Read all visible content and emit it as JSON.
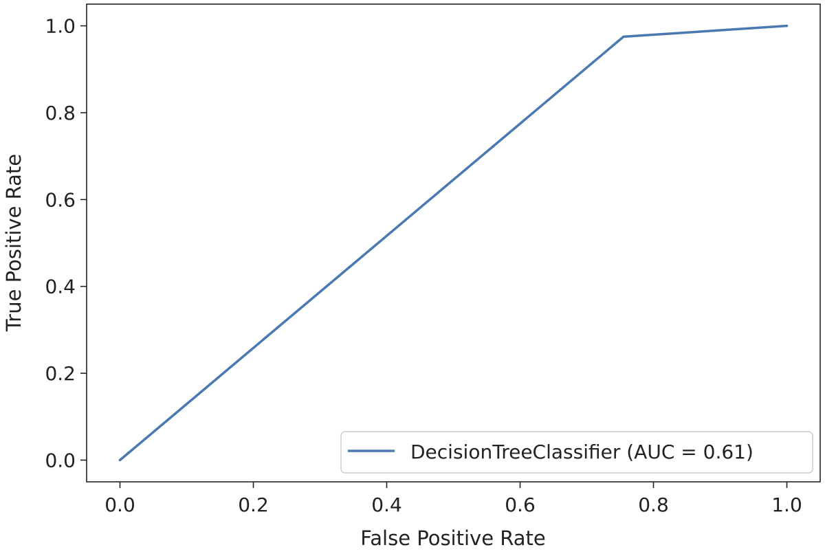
{
  "chart_data": {
    "type": "line",
    "title": "",
    "xlabel": "False Positive Rate",
    "ylabel": "True Positive Rate",
    "xlim": [
      -0.05,
      1.05
    ],
    "ylim": [
      -0.05,
      1.05
    ],
    "xticks": [
      "0.0",
      "0.2",
      "0.4",
      "0.6",
      "0.8",
      "1.0"
    ],
    "yticks": [
      "0.0",
      "0.2",
      "0.4",
      "0.6",
      "0.8",
      "1.0"
    ],
    "grid": false,
    "legend_position": "lower-right",
    "series": [
      {
        "name": "DecisionTreeClassifier (AUC = 0.61)",
        "color": "#4a78b0",
        "x": [
          0.0,
          0.755,
          1.0
        ],
        "y": [
          0.0,
          0.975,
          1.0
        ]
      }
    ]
  }
}
